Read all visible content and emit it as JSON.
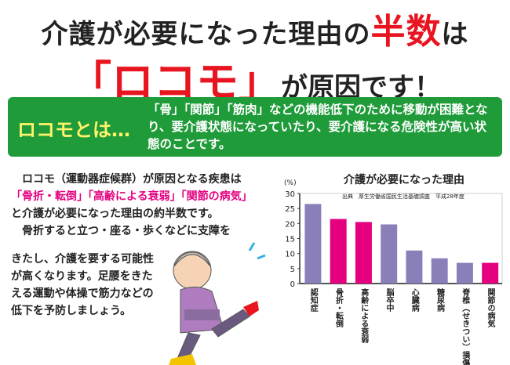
{
  "headline": {
    "line1_pre": "介護が必要になった理由の",
    "line1_em": "半数",
    "line1_post": "は",
    "line2_em": "「ロコモ」",
    "line2_post": "が原因です！"
  },
  "definition": {
    "label": "ロコモとは…",
    "text": "「骨」「関節」「筋肉」などの機能低下のために移動が困難となり、要介護状態になっていたり、要介護になる危険性が高い状態のことです。"
  },
  "body": {
    "p1_a": "　ロコモ（運動器症候群）が原因となる疾患は",
    "p1_pink": "「骨折・転倒」「高齢による衰弱」「関節の病気」",
    "p1_b": "と介護が必要になった理由の約半数です。",
    "p2_a": "　骨折すると立つ・座る・歩くなどに支障を",
    "p2_b": "きたし、介護を要する可能性が高くなります。足腰をきたえる運動や体操で筋力などの低下を予防しましょう。"
  },
  "colors": {
    "purple": "#8b7fba",
    "pink": "#e4007f",
    "green": "#1f9b3a",
    "red": "#e8141f"
  },
  "chart_data": {
    "type": "bar",
    "title": "介護が必要になった理由",
    "ylabel": "(%)",
    "source": "出典　厚生労働省国民生活基礎調査　平成28年度",
    "ylim": [
      0,
      30
    ],
    "yticks": [
      0,
      5,
      10,
      15,
      20,
      25,
      30
    ],
    "categories": [
      "認知症",
      "骨折・転倒",
      "高齢による衰弱",
      "脳卒中",
      "心臓病",
      "糖尿病",
      "脊椎（せきつい）損傷",
      "関節の病気"
    ],
    "values": [
      26.5,
      21.5,
      20.5,
      19.7,
      11,
      8.4,
      6.9,
      6.9
    ],
    "bar_colors": [
      "#8b7fba",
      "#e4007f",
      "#e4007f",
      "#8b7fba",
      "#8b7fba",
      "#8b7fba",
      "#8b7fba",
      "#e4007f"
    ],
    "grid": false
  }
}
